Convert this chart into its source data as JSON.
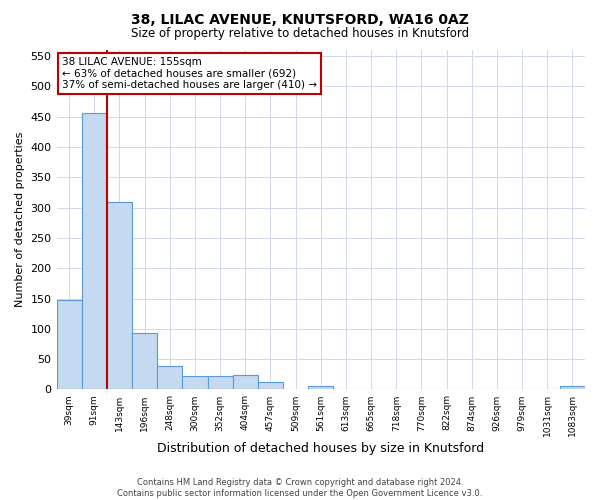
{
  "title1": "38, LILAC AVENUE, KNUTSFORD, WA16 0AZ",
  "title2": "Size of property relative to detached houses in Knutsford",
  "xlabel": "Distribution of detached houses by size in Knutsford",
  "ylabel": "Number of detached properties",
  "categories": [
    "39sqm",
    "91sqm",
    "143sqm",
    "196sqm",
    "248sqm",
    "300sqm",
    "352sqm",
    "404sqm",
    "457sqm",
    "509sqm",
    "561sqm",
    "613sqm",
    "665sqm",
    "718sqm",
    "770sqm",
    "822sqm",
    "874sqm",
    "926sqm",
    "979sqm",
    "1031sqm",
    "1083sqm"
  ],
  "values": [
    148,
    456,
    310,
    93,
    38,
    22,
    22,
    24,
    12,
    0,
    6,
    0,
    0,
    0,
    0,
    0,
    0,
    0,
    0,
    0,
    5
  ],
  "bar_color": "#c5d9f0",
  "bar_edge_color": "#5b9bd5",
  "vline_x": 1.5,
  "vline_color": "#c00000",
  "annotation_text": "38 LILAC AVENUE: 155sqm\n← 63% of detached houses are smaller (692)\n37% of semi-detached houses are larger (410) →",
  "annotation_box_color": "#ffffff",
  "annotation_box_edge": "#c00000",
  "ylim": [
    0,
    560
  ],
  "yticks": [
    0,
    50,
    100,
    150,
    200,
    250,
    300,
    350,
    400,
    450,
    500,
    550
  ],
  "footnote": "Contains HM Land Registry data © Crown copyright and database right 2024.\nContains public sector information licensed under the Open Government Licence v3.0.",
  "bg_color": "#ffffff",
  "grid_color": "#d0d8e8"
}
